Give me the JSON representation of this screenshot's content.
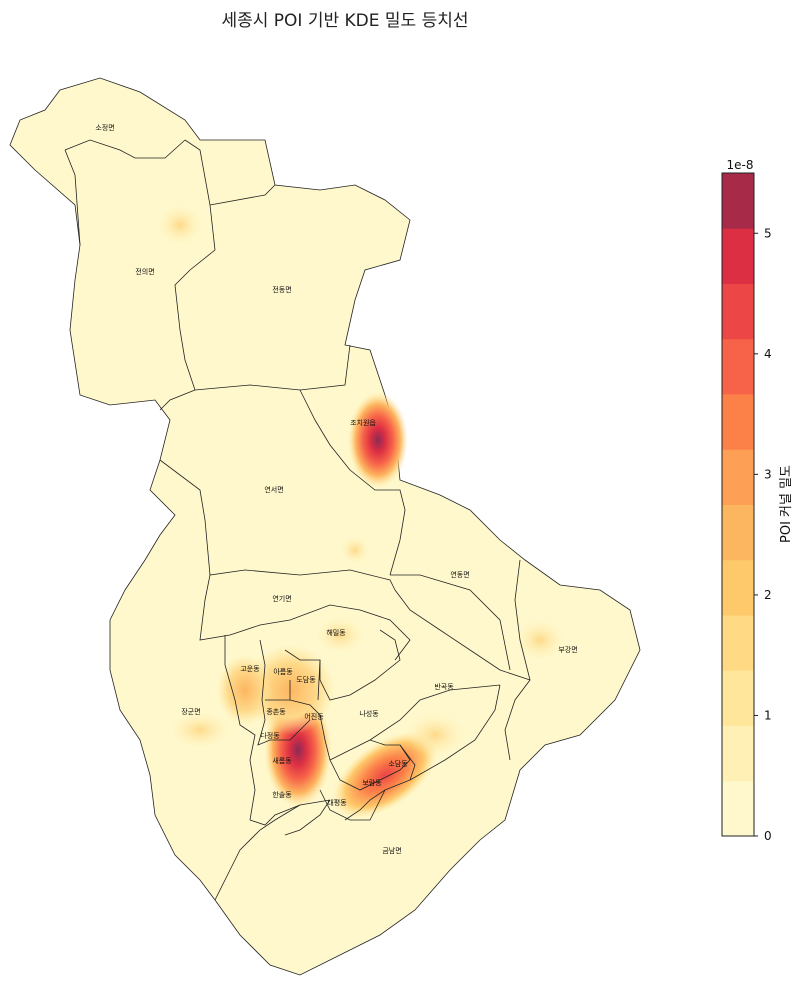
{
  "title": "세종시 POI 기반 KDE 밀도 등치선",
  "colorbar": {
    "label": "POI 커널 밀도",
    "multiplier": "1e-8",
    "ticks": [
      "0",
      "1",
      "2",
      "3",
      "4",
      "5"
    ],
    "levels": [
      "#fff8cc",
      "#fff1b5",
      "#ffe69b",
      "#ffd983",
      "#fec96b",
      "#fdb660",
      "#fd9f55",
      "#fc8149",
      "#f76348",
      "#ec4646",
      "#dc2f44",
      "#a72b49"
    ]
  },
  "districts": [
    {
      "name": "소정면"
    },
    {
      "name": "전의면"
    },
    {
      "name": "전동면"
    },
    {
      "name": "조치원읍"
    },
    {
      "name": "연서면"
    },
    {
      "name": "연동면"
    },
    {
      "name": "연기면"
    },
    {
      "name": "부강면"
    },
    {
      "name": "해밀동"
    },
    {
      "name": "고운동"
    },
    {
      "name": "아름동"
    },
    {
      "name": "도담동"
    },
    {
      "name": "반곡동"
    },
    {
      "name": "장군면"
    },
    {
      "name": "종촌동"
    },
    {
      "name": "어진동"
    },
    {
      "name": "나성동"
    },
    {
      "name": "다정동"
    },
    {
      "name": "새롬동"
    },
    {
      "name": "소담동"
    },
    {
      "name": "보람동"
    },
    {
      "name": "한솔동"
    },
    {
      "name": "대평동"
    },
    {
      "name": "금남면"
    }
  ]
}
